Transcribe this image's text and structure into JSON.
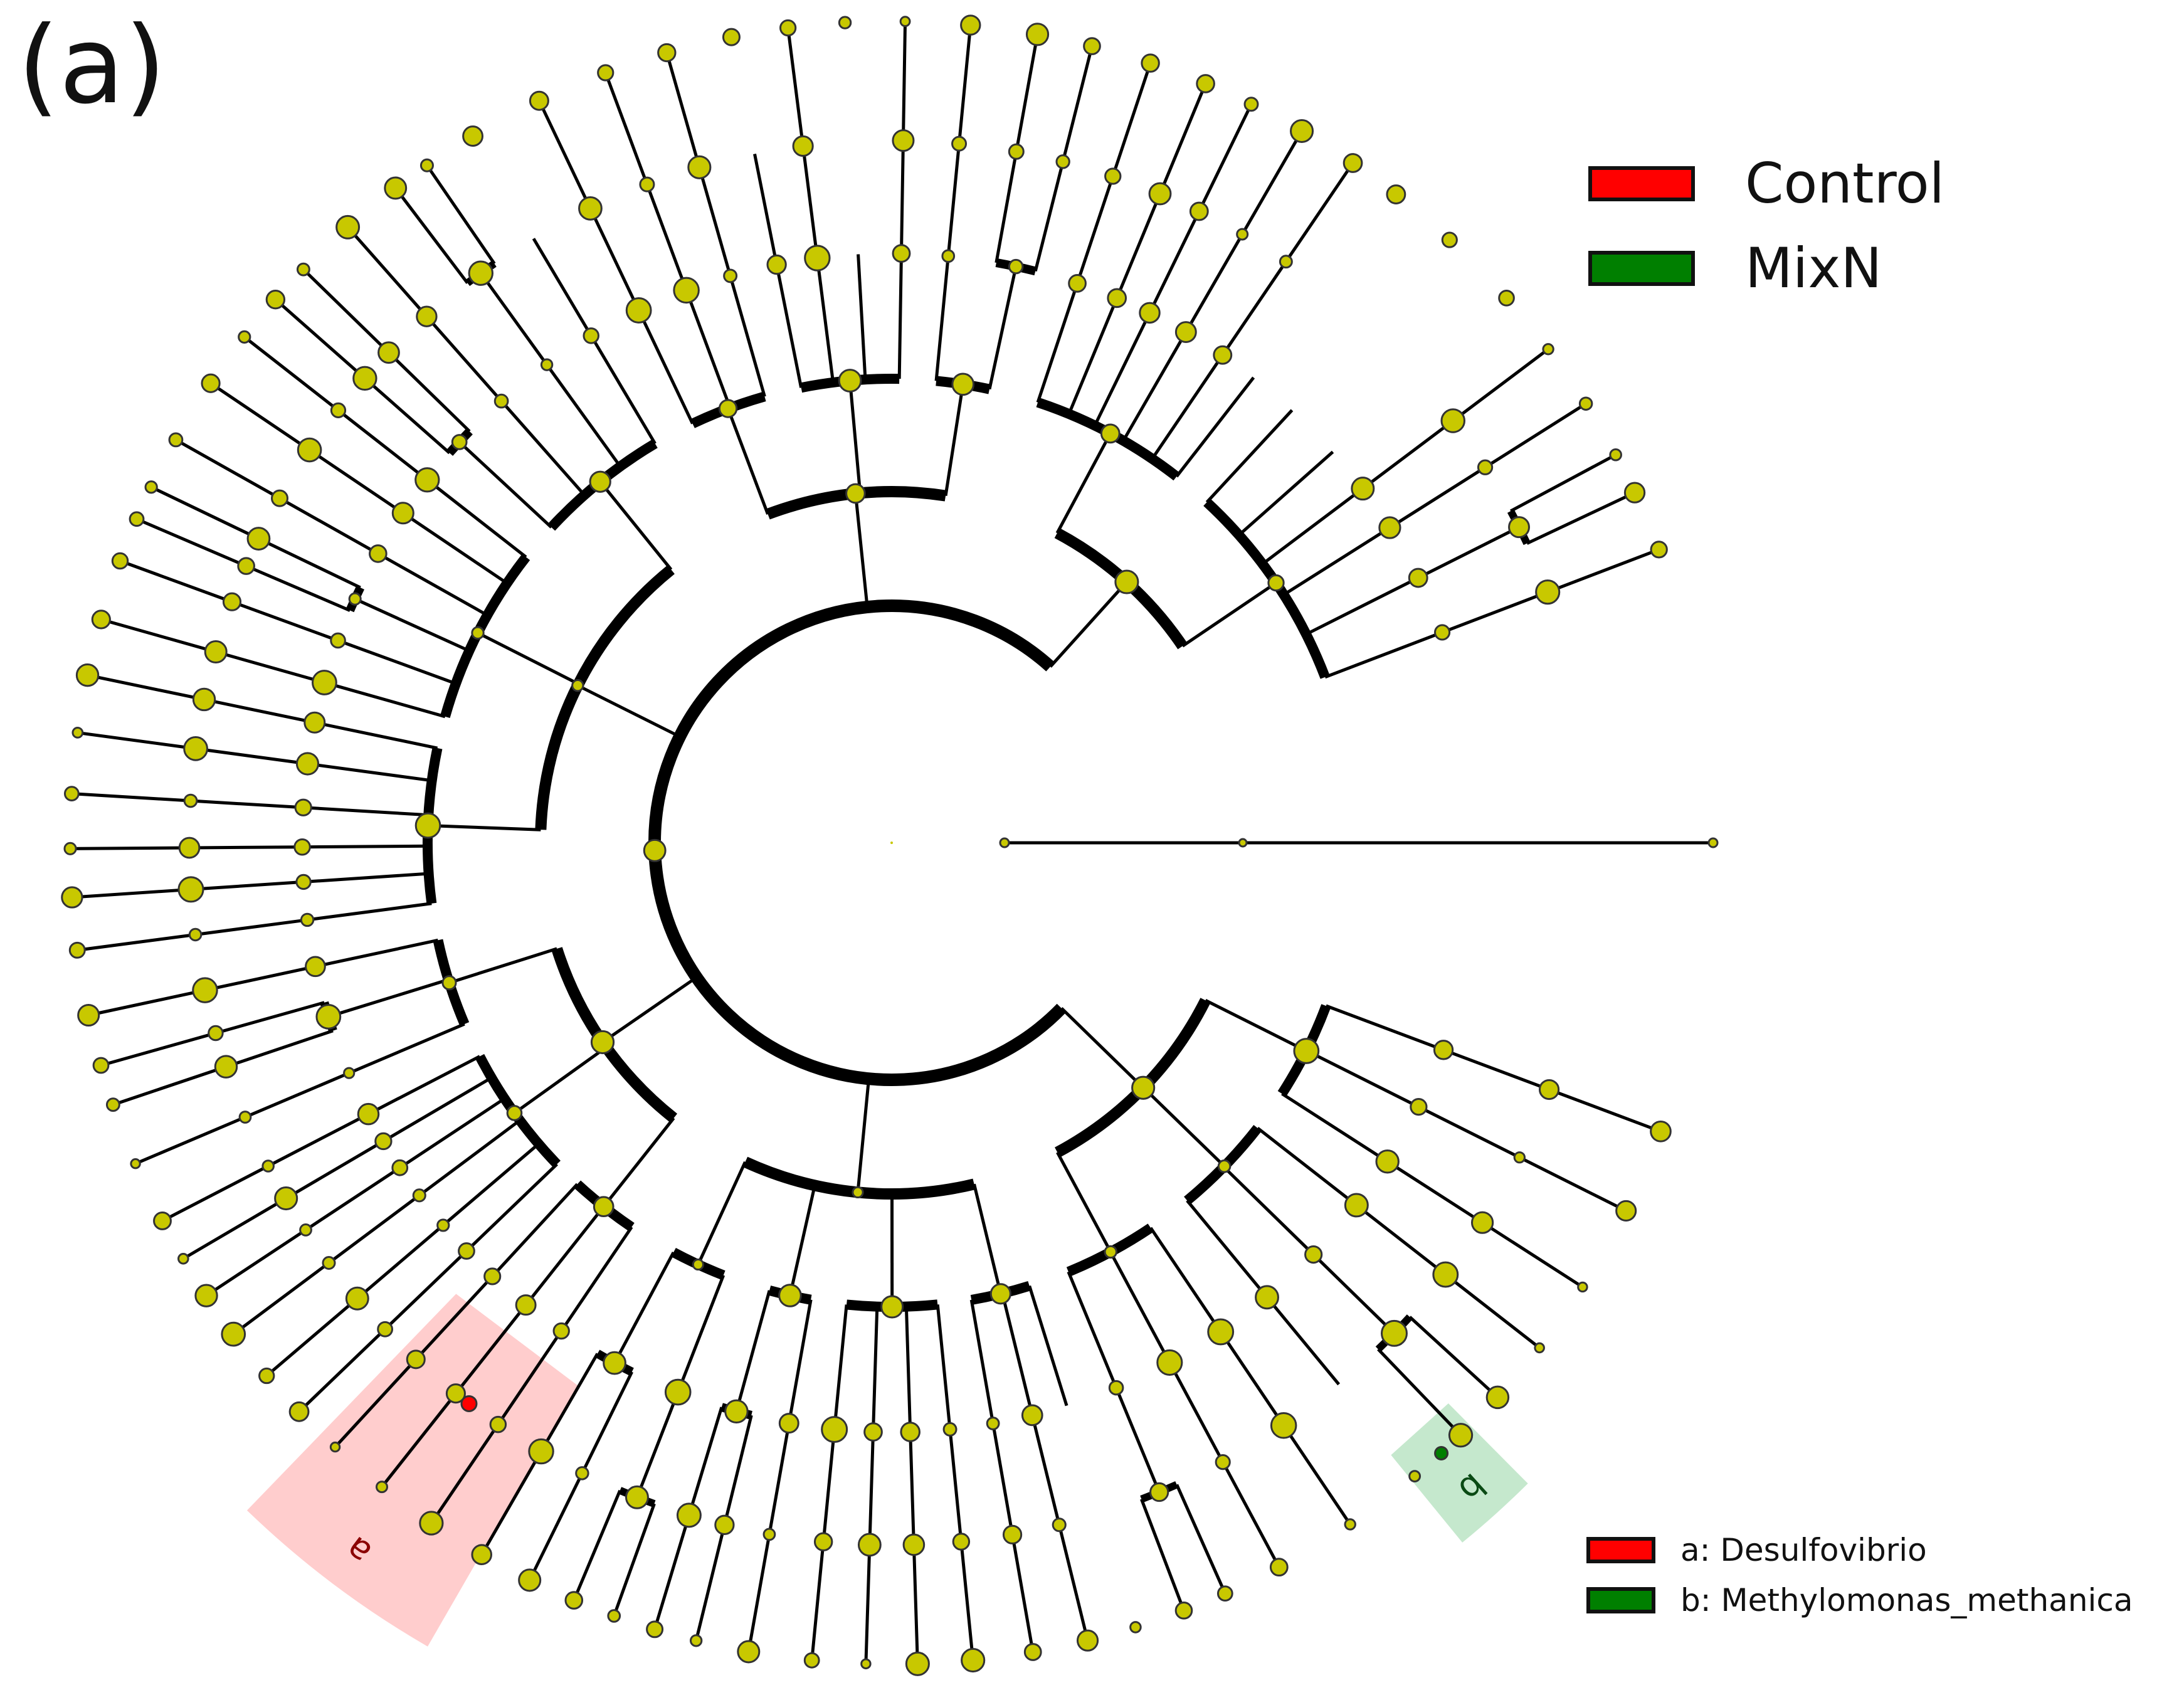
{
  "panel_label": "(a)",
  "legend": {
    "groups": [
      {
        "label": "Control",
        "color": "#ff0000"
      },
      {
        "label": "MixN",
        "color": "#007f00"
      }
    ],
    "clades": [
      {
        "label": "a: Desulfovibrio",
        "color": "#ff0000",
        "marker": "a"
      },
      {
        "label": "b: Methylomonas_methanica",
        "color": "#007f00",
        "marker": "b"
      }
    ]
  },
  "highlights": [
    {
      "marker": "a",
      "group": "Control",
      "shade": "#ffc8c8",
      "text_color": "#8b0000"
    },
    {
      "marker": "b",
      "group": "MixN",
      "shade": "#bfe6c8",
      "text_color": "#0a4a14"
    }
  ],
  "colors": {
    "node": "#c8c800",
    "node_stroke": "#333333",
    "branch": "#000000"
  }
}
